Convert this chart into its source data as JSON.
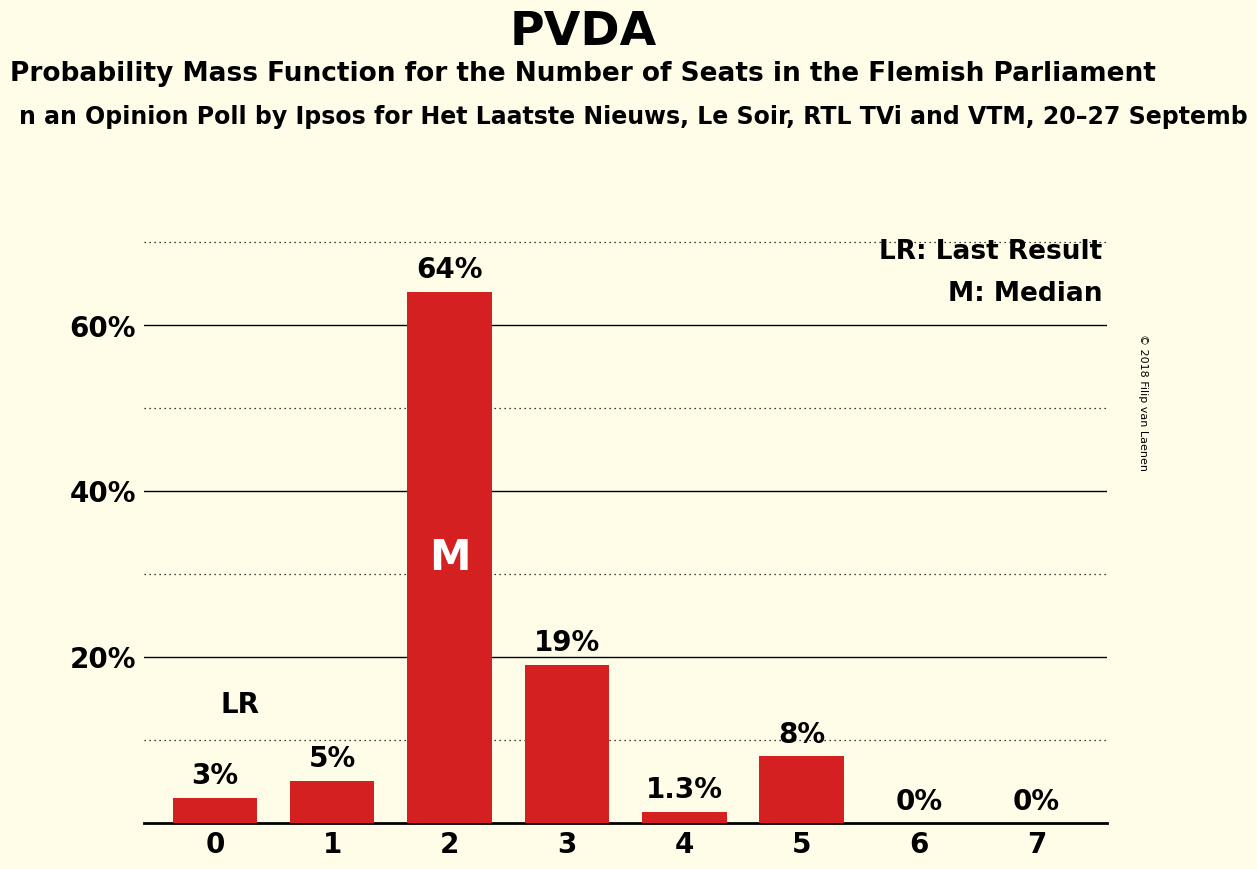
{
  "title": "PVDA",
  "subtitle1": "Probability Mass Function for the Number of Seats in the Flemish Parliament",
  "subtitle2": "n an Opinion Poll by Ipsos for Het Laatste Nieuws, Le Soir, RTL TVi and VTM, 20–27 Septemb",
  "copyright": "© 2018 Filip van Laenen",
  "categories": [
    0,
    1,
    2,
    3,
    4,
    5,
    6,
    7
  ],
  "values": [
    3,
    5,
    64,
    19,
    1.3,
    8,
    0,
    0
  ],
  "bar_color": "#d42020",
  "background_color": "#fffde8",
  "solid_gridlines": [
    20,
    40,
    60
  ],
  "dotted_gridlines": [
    10,
    30,
    50,
    70
  ],
  "ylim": [
    0,
    73
  ],
  "median_bar_index": 2,
  "lr_bar_index": 0,
  "lr_label": "LR",
  "median_label": "M",
  "legend_lr": "LR: Last Result",
  "legend_m": "M: Median",
  "bar_labels": [
    "3%",
    "5%",
    "64%",
    "19%",
    "1.3%",
    "8%",
    "0%",
    "0%"
  ],
  "title_fontsize": 34,
  "subtitle1_fontsize": 19,
  "subtitle2_fontsize": 17,
  "tick_fontsize": 20,
  "bar_label_fontsize": 20,
  "legend_fontsize": 19,
  "median_label_fontsize": 30,
  "ytick_positions": [
    20,
    40,
    60
  ],
  "ytick_labels": [
    "20%",
    "40%",
    "60%"
  ]
}
